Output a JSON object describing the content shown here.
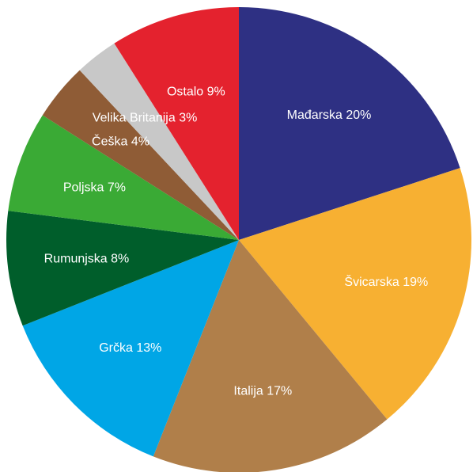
{
  "chart_data": {
    "type": "pie",
    "categories": [
      "Mađarska",
      "Švicarska",
      "Italija",
      "Grčka",
      "Rumunjska",
      "Poljska",
      "Češka",
      "Velika Britanija",
      "Ostalo"
    ],
    "values": [
      20,
      19,
      17,
      13,
      8,
      7,
      4,
      3,
      9
    ],
    "value_labels": [
      "20%",
      "19%",
      "17%",
      "13%",
      "8%",
      "7%",
      "4%",
      "3%",
      "9%"
    ],
    "colors": [
      "#2e3083",
      "#f7b032",
      "#b07f4a",
      "#00a6e6",
      "#005e2b",
      "#3aaa35",
      "#8f5c36",
      "#c8c8c8",
      "#e4222e"
    ]
  }
}
